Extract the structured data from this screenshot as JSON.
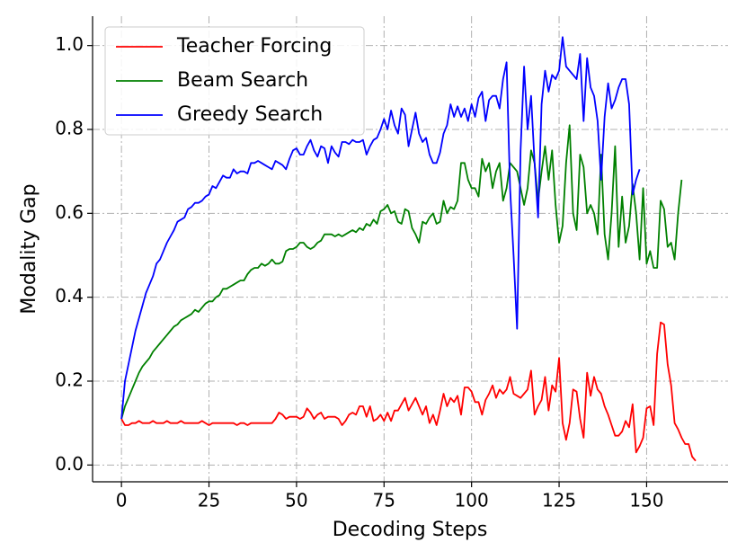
{
  "chart_data": {
    "type": "line",
    "xlabel": "Decoding Steps",
    "ylabel": "Modality Gap",
    "xlim": [
      -8.25,
      173.25
    ],
    "ylim": [
      -0.04,
      1.07
    ],
    "xticks": [
      0,
      25,
      50,
      75,
      100,
      125,
      150
    ],
    "yticks": [
      {
        "value": 0,
        "label": "0.0"
      },
      0.2,
      0.4,
      0.6,
      0.8,
      {
        "value": 1,
        "label": "1.0"
      }
    ],
    "grid": true,
    "legend": "upper left",
    "series": [
      {
        "name": "Teacher Forcing",
        "color": "#ff0000",
        "values": [
          0.11,
          0.095,
          0.095,
          0.1,
          0.1,
          0.105,
          0.1,
          0.1,
          0.1,
          0.105,
          0.1,
          0.1,
          0.1,
          0.105,
          0.1,
          0.1,
          0.1,
          0.105,
          0.1,
          0.1,
          0.1,
          0.1,
          0.1,
          0.105,
          0.1,
          0.095,
          0.1,
          0.1,
          0.1,
          0.1,
          0.1,
          0.1,
          0.1,
          0.095,
          0.1,
          0.1,
          0.095,
          0.1,
          0.1,
          0.1,
          0.1,
          0.1,
          0.1,
          0.1,
          0.11,
          0.125,
          0.12,
          0.11,
          0.115,
          0.115,
          0.115,
          0.11,
          0.115,
          0.135,
          0.125,
          0.11,
          0.12,
          0.125,
          0.11,
          0.115,
          0.115,
          0.115,
          0.11,
          0.095,
          0.105,
          0.12,
          0.125,
          0.12,
          0.14,
          0.14,
          0.115,
          0.14,
          0.105,
          0.11,
          0.12,
          0.105,
          0.125,
          0.105,
          0.13,
          0.13,
          0.145,
          0.16,
          0.13,
          0.145,
          0.16,
          0.14,
          0.12,
          0.14,
          0.1,
          0.12,
          0.095,
          0.13,
          0.17,
          0.14,
          0.16,
          0.15,
          0.165,
          0.12,
          0.185,
          0.185,
          0.175,
          0.15,
          0.15,
          0.12,
          0.155,
          0.17,
          0.19,
          0.16,
          0.18,
          0.17,
          0.18,
          0.21,
          0.17,
          0.165,
          0.16,
          0.17,
          0.18,
          0.225,
          0.12,
          0.14,
          0.155,
          0.21,
          0.13,
          0.19,
          0.175,
          0.255,
          0.1,
          0.06,
          0.1,
          0.18,
          0.175,
          0.11,
          0.065,
          0.22,
          0.165,
          0.21,
          0.18,
          0.17,
          0.14,
          0.12,
          0.095,
          0.07,
          0.07,
          0.08,
          0.105,
          0.09,
          0.145,
          0.03,
          0.045,
          0.065,
          0.135,
          0.14,
          0.095,
          0.265,
          0.34,
          0.335,
          0.24,
          0.19,
          0.1,
          0.085,
          0.065,
          0.05,
          0.05,
          0.02,
          0.01
        ]
      },
      {
        "name": "Beam Search",
        "color": "#008000",
        "values": [
          0.11,
          0.14,
          0.16,
          0.18,
          0.2,
          0.22,
          0.235,
          0.245,
          0.255,
          0.27,
          0.28,
          0.29,
          0.3,
          0.31,
          0.32,
          0.33,
          0.335,
          0.345,
          0.35,
          0.355,
          0.36,
          0.37,
          0.365,
          0.375,
          0.385,
          0.39,
          0.39,
          0.4,
          0.405,
          0.42,
          0.42,
          0.425,
          0.43,
          0.435,
          0.44,
          0.44,
          0.455,
          0.465,
          0.47,
          0.47,
          0.48,
          0.475,
          0.48,
          0.49,
          0.48,
          0.48,
          0.485,
          0.51,
          0.515,
          0.515,
          0.52,
          0.53,
          0.53,
          0.52,
          0.515,
          0.52,
          0.53,
          0.535,
          0.55,
          0.55,
          0.55,
          0.545,
          0.55,
          0.545,
          0.55,
          0.555,
          0.56,
          0.555,
          0.565,
          0.56,
          0.575,
          0.57,
          0.585,
          0.575,
          0.605,
          0.61,
          0.62,
          0.6,
          0.605,
          0.58,
          0.575,
          0.61,
          0.605,
          0.565,
          0.55,
          0.53,
          0.58,
          0.575,
          0.59,
          0.6,
          0.575,
          0.58,
          0.63,
          0.6,
          0.615,
          0.61,
          0.63,
          0.72,
          0.72,
          0.68,
          0.66,
          0.66,
          0.64,
          0.73,
          0.7,
          0.72,
          0.66,
          0.7,
          0.72,
          0.63,
          0.66,
          0.72,
          0.71,
          0.7,
          0.66,
          0.62,
          0.66,
          0.75,
          0.72,
          0.63,
          0.7,
          0.76,
          0.68,
          0.75,
          0.62,
          0.53,
          0.57,
          0.72,
          0.81,
          0.6,
          0.56,
          0.74,
          0.71,
          0.6,
          0.62,
          0.6,
          0.55,
          0.74,
          0.55,
          0.49,
          0.6,
          0.76,
          0.52,
          0.64,
          0.53,
          0.57,
          0.67,
          0.6,
          0.49,
          0.66,
          0.48,
          0.51,
          0.47,
          0.47,
          0.63,
          0.61,
          0.52,
          0.53,
          0.49,
          0.6,
          0.68
        ]
      },
      {
        "name": "Greedy Search",
        "color": "#0000ff",
        "values": [
          0.11,
          0.2,
          0.24,
          0.28,
          0.32,
          0.35,
          0.38,
          0.41,
          0.43,
          0.45,
          0.48,
          0.49,
          0.51,
          0.53,
          0.545,
          0.56,
          0.58,
          0.585,
          0.59,
          0.61,
          0.615,
          0.625,
          0.625,
          0.63,
          0.64,
          0.645,
          0.665,
          0.66,
          0.675,
          0.69,
          0.685,
          0.685,
          0.705,
          0.695,
          0.7,
          0.7,
          0.695,
          0.72,
          0.72,
          0.725,
          0.72,
          0.715,
          0.71,
          0.705,
          0.725,
          0.72,
          0.715,
          0.705,
          0.73,
          0.75,
          0.755,
          0.74,
          0.74,
          0.76,
          0.775,
          0.75,
          0.735,
          0.76,
          0.755,
          0.72,
          0.76,
          0.745,
          0.735,
          0.77,
          0.77,
          0.765,
          0.775,
          0.77,
          0.77,
          0.775,
          0.74,
          0.76,
          0.775,
          0.78,
          0.8,
          0.825,
          0.8,
          0.845,
          0.81,
          0.79,
          0.85,
          0.835,
          0.76,
          0.8,
          0.84,
          0.79,
          0.77,
          0.78,
          0.74,
          0.72,
          0.72,
          0.745,
          0.79,
          0.81,
          0.86,
          0.83,
          0.855,
          0.83,
          0.85,
          0.82,
          0.86,
          0.83,
          0.875,
          0.89,
          0.82,
          0.87,
          0.88,
          0.88,
          0.85,
          0.92,
          0.96,
          0.66,
          0.5,
          0.325,
          0.75,
          0.95,
          0.8,
          0.88,
          0.72,
          0.59,
          0.86,
          0.94,
          0.89,
          0.93,
          0.92,
          0.94,
          1.02,
          0.95,
          0.94,
          0.93,
          0.92,
          0.98,
          0.82,
          0.97,
          0.9,
          0.88,
          0.82,
          0.68,
          0.83,
          0.91,
          0.85,
          0.87,
          0.9,
          0.92,
          0.92,
          0.86,
          0.645,
          0.68,
          0.705
        ]
      }
    ]
  }
}
